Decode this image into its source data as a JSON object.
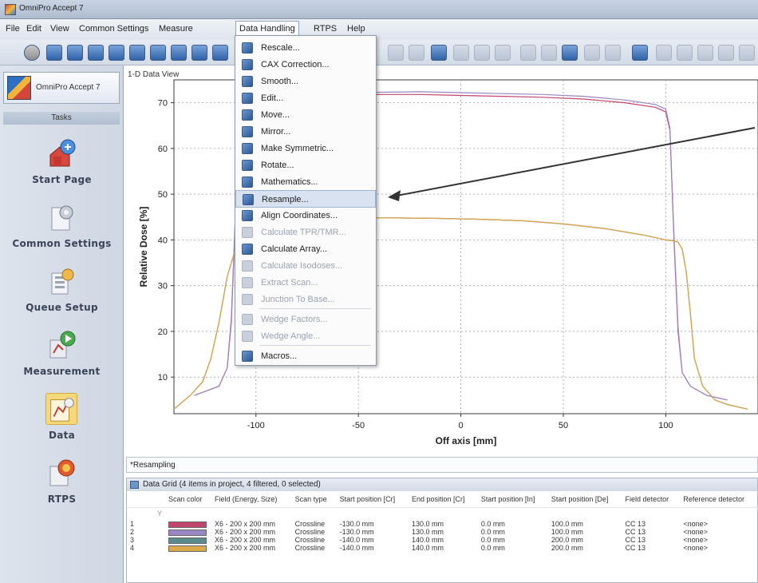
{
  "window": {
    "title": "OmniPro Accept 7"
  },
  "menu": [
    "File",
    "Edit",
    "View",
    "Common Settings",
    "Measure",
    "Data Handling",
    "RTPS",
    "Help"
  ],
  "sidebar": {
    "brand": "OmniPro Accept 7",
    "tasks_header": "Tasks",
    "items": [
      {
        "label": "Start Page",
        "icon": "house-globe-icon"
      },
      {
        "label": "Common Settings",
        "icon": "gear-document-icon"
      },
      {
        "label": "Queue Setup",
        "icon": "queue-list-icon"
      },
      {
        "label": "Measurement",
        "icon": "play-measure-icon"
      },
      {
        "label": "Data",
        "icon": "data-chart-icon",
        "selected": true
      },
      {
        "label": "RTPS",
        "icon": "rtps-globe-icon"
      }
    ]
  },
  "view": {
    "tab_label": "1-D Data View"
  },
  "dropdown": {
    "items": [
      {
        "label": "Rescale...",
        "enabled": true
      },
      {
        "label": "CAX Correction...",
        "enabled": true
      },
      {
        "label": "Smooth...",
        "enabled": true
      },
      {
        "label": "Edit...",
        "enabled": true
      },
      {
        "label": "Move...",
        "enabled": true
      },
      {
        "label": "Mirror...",
        "enabled": true
      },
      {
        "label": "Make Symmetric...",
        "enabled": true
      },
      {
        "label": "Rotate...",
        "enabled": true
      },
      {
        "label": "Mathematics...",
        "enabled": true
      },
      {
        "label": "Resample...",
        "enabled": true,
        "highlighted": true
      },
      {
        "label": "Align Coordinates...",
        "enabled": true
      },
      {
        "label": "Calculate TPR/TMR...",
        "enabled": false
      },
      {
        "label": "Calculate Array...",
        "enabled": true
      },
      {
        "label": "Calculate Isodoses...",
        "enabled": false
      },
      {
        "label": "Extract Scan...",
        "enabled": false
      },
      {
        "label": "Junction To Base...",
        "enabled": false
      },
      {
        "label": "Wedge Factors...",
        "enabled": false
      },
      {
        "label": "Wedge Angle...",
        "enabled": false
      },
      {
        "label": "Macros...",
        "enabled": true
      }
    ]
  },
  "chart_data": {
    "type": "line",
    "xlabel": "Off axis [mm]",
    "ylabel": "Relative Dose [%]",
    "xlim": [
      -140,
      145
    ],
    "ylim": [
      2,
      75
    ],
    "xticks": [
      -100,
      -50,
      0,
      50,
      100
    ],
    "yticks": [
      10,
      20,
      30,
      40,
      50,
      60,
      70
    ],
    "series": [
      {
        "color": "#c2456b",
        "x": [
          -130,
          -118,
          -114,
          -112,
          -110,
          -108,
          -106,
          -100,
          -90,
          -80,
          -60,
          -40,
          -20,
          0,
          20,
          40,
          60,
          80,
          95,
          100,
          102,
          104,
          106,
          108,
          112,
          120,
          130
        ],
        "y": [
          6,
          8,
          12,
          22,
          45,
          62,
          66,
          68,
          69.5,
          70.5,
          71.5,
          71.8,
          71.8,
          71.6,
          71.4,
          71.2,
          70.8,
          70,
          69,
          68,
          64,
          40,
          20,
          11,
          8,
          6,
          5
        ]
      },
      {
        "color": "#9b86c4",
        "x": [
          -130,
          -118,
          -114,
          -112,
          -110,
          -108,
          -106,
          -100,
          -90,
          -80,
          -60,
          -40,
          -20,
          0,
          20,
          40,
          60,
          80,
          95,
          100,
          102,
          104,
          106,
          108,
          112,
          120,
          130
        ],
        "y": [
          6,
          8,
          12,
          23,
          46,
          63,
          67,
          68.5,
          70,
          71,
          72,
          72.3,
          72.4,
          72.2,
          72,
          71.8,
          71.4,
          70.6,
          69.6,
          68.6,
          64.5,
          41,
          21,
          11,
          8,
          6,
          5
        ]
      },
      {
        "color": "#4e5558",
        "x": [
          -140,
          -132,
          -126,
          -122,
          -118,
          -114,
          -110,
          -106,
          -100,
          -90,
          -70,
          -50,
          -30,
          -10,
          10,
          30,
          50,
          70,
          90,
          100,
          104,
          106,
          108,
          110,
          112,
          114,
          118,
          124,
          130,
          140
        ],
        "y": [
          3,
          6,
          9,
          14,
          22,
          32,
          38,
          41,
          43,
          44,
          44.5,
          44.8,
          44.8,
          44.7,
          44.5,
          44.2,
          43.5,
          42.5,
          41,
          40,
          39.8,
          39.5,
          38,
          33,
          24,
          14,
          8,
          5,
          4,
          3
        ]
      },
      {
        "color": "#dba84a",
        "x": [
          -140,
          -132,
          -126,
          -122,
          -118,
          -114,
          -110,
          -106,
          -100,
          -90,
          -70,
          -50,
          -30,
          -10,
          10,
          30,
          50,
          70,
          90,
          100,
          104,
          106,
          108,
          110,
          112,
          114,
          118,
          124,
          130,
          140
        ],
        "y": [
          3,
          6,
          9,
          14,
          22,
          32,
          38,
          41,
          43,
          44,
          44.5,
          44.8,
          44.8,
          44.7,
          44.5,
          44.2,
          43.5,
          42.5,
          41,
          40,
          39.8,
          39.5,
          38,
          33,
          24,
          14,
          8,
          5,
          4,
          3
        ]
      }
    ]
  },
  "resample_bar": {
    "label": "*Resampling"
  },
  "grid": {
    "header": "Data Grid (4 items in project, 4 filtered, 0 selected)",
    "columns": [
      "",
      "Scan color",
      "Field (Energy, Size)",
      "Scan type",
      "Start position [Cr]",
      "End position [Cr]",
      "Start position [In]",
      "Start position [De]",
      "Field detector",
      "Reference detector"
    ],
    "filter_symbol": "Y",
    "rows": [
      {
        "n": "1",
        "color": "#c2456b",
        "field": "X6 - 200 x 200 mm",
        "scan_type": "Crossline",
        "start_cr": "-130.0 mm",
        "end_cr": "130.0 mm",
        "start_in": "0.0 mm",
        "start_de": "100.0 mm",
        "field_det": "CC 13",
        "ref_det": "<none>"
      },
      {
        "n": "2",
        "color": "#9b86c4",
        "field": "X6 - 200 x 200 mm",
        "scan_type": "Crossline",
        "start_cr": "-130.0 mm",
        "end_cr": "130.0 mm",
        "start_in": "0.0 mm",
        "start_de": "100.0 mm",
        "field_det": "CC 13",
        "ref_det": "<none>"
      },
      {
        "n": "3",
        "color": "#5a8a8c",
        "field": "X6 - 200 x 200 mm",
        "scan_type": "Crossline",
        "start_cr": "-140.0 mm",
        "end_cr": "140.0 mm",
        "start_in": "0.0 mm",
        "start_de": "200.0 mm",
        "field_det": "CC 13",
        "ref_det": "<none>"
      },
      {
        "n": "4",
        "color": "#dba84a",
        "field": "X6 - 200 x 200 mm",
        "scan_type": "Crossline",
        "start_cr": "-140.0 mm",
        "end_cr": "140.0 mm",
        "start_in": "0.0 mm",
        "start_de": "200.0 mm",
        "field_det": "CC 13",
        "ref_det": "<none>"
      }
    ]
  }
}
